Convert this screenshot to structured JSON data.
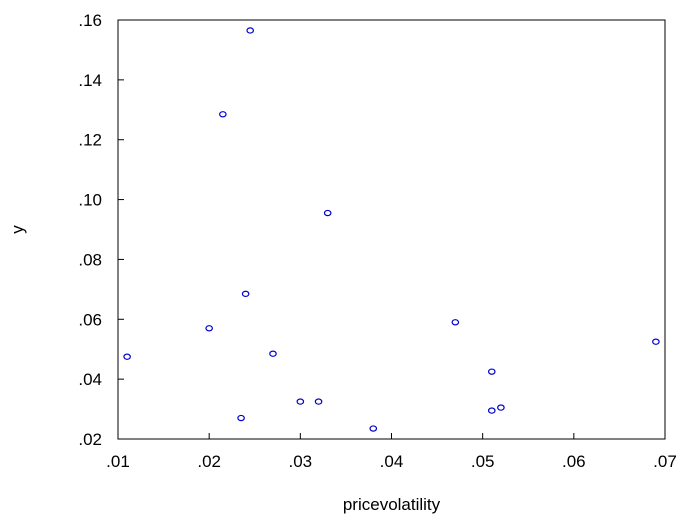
{
  "chart_data": {
    "type": "scatter",
    "xlabel": "pricevolatility",
    "ylabel": "y",
    "xlim": [
      0.01,
      0.07
    ],
    "ylim": [
      0.02,
      0.16
    ],
    "x_ticks": [
      0.01,
      0.02,
      0.03,
      0.04,
      0.05,
      0.06,
      0.07
    ],
    "x_tick_labels": [
      ".01",
      ".02",
      ".03",
      ".04",
      ".05",
      ".06",
      ".07"
    ],
    "y_ticks": [
      0.02,
      0.04,
      0.06,
      0.08,
      0.1,
      0.12,
      0.14,
      0.16
    ],
    "y_tick_labels": [
      ".02",
      ".04",
      ".06",
      ".08",
      ".10",
      ".12",
      ".14",
      ".16"
    ],
    "grid": false,
    "marker_color": "#0000cc",
    "points": [
      {
        "x": 0.011,
        "y": 0.0475
      },
      {
        "x": 0.02,
        "y": 0.057
      },
      {
        "x": 0.0215,
        "y": 0.1285
      },
      {
        "x": 0.0235,
        "y": 0.027
      },
      {
        "x": 0.024,
        "y": 0.0685
      },
      {
        "x": 0.0245,
        "y": 0.1565
      },
      {
        "x": 0.027,
        "y": 0.0485
      },
      {
        "x": 0.03,
        "y": 0.0325
      },
      {
        "x": 0.032,
        "y": 0.0325
      },
      {
        "x": 0.033,
        "y": 0.0955
      },
      {
        "x": 0.038,
        "y": 0.0235
      },
      {
        "x": 0.047,
        "y": 0.059
      },
      {
        "x": 0.051,
        "y": 0.0425
      },
      {
        "x": 0.051,
        "y": 0.0295
      },
      {
        "x": 0.052,
        "y": 0.0305
      },
      {
        "x": 0.069,
        "y": 0.0525
      }
    ]
  }
}
